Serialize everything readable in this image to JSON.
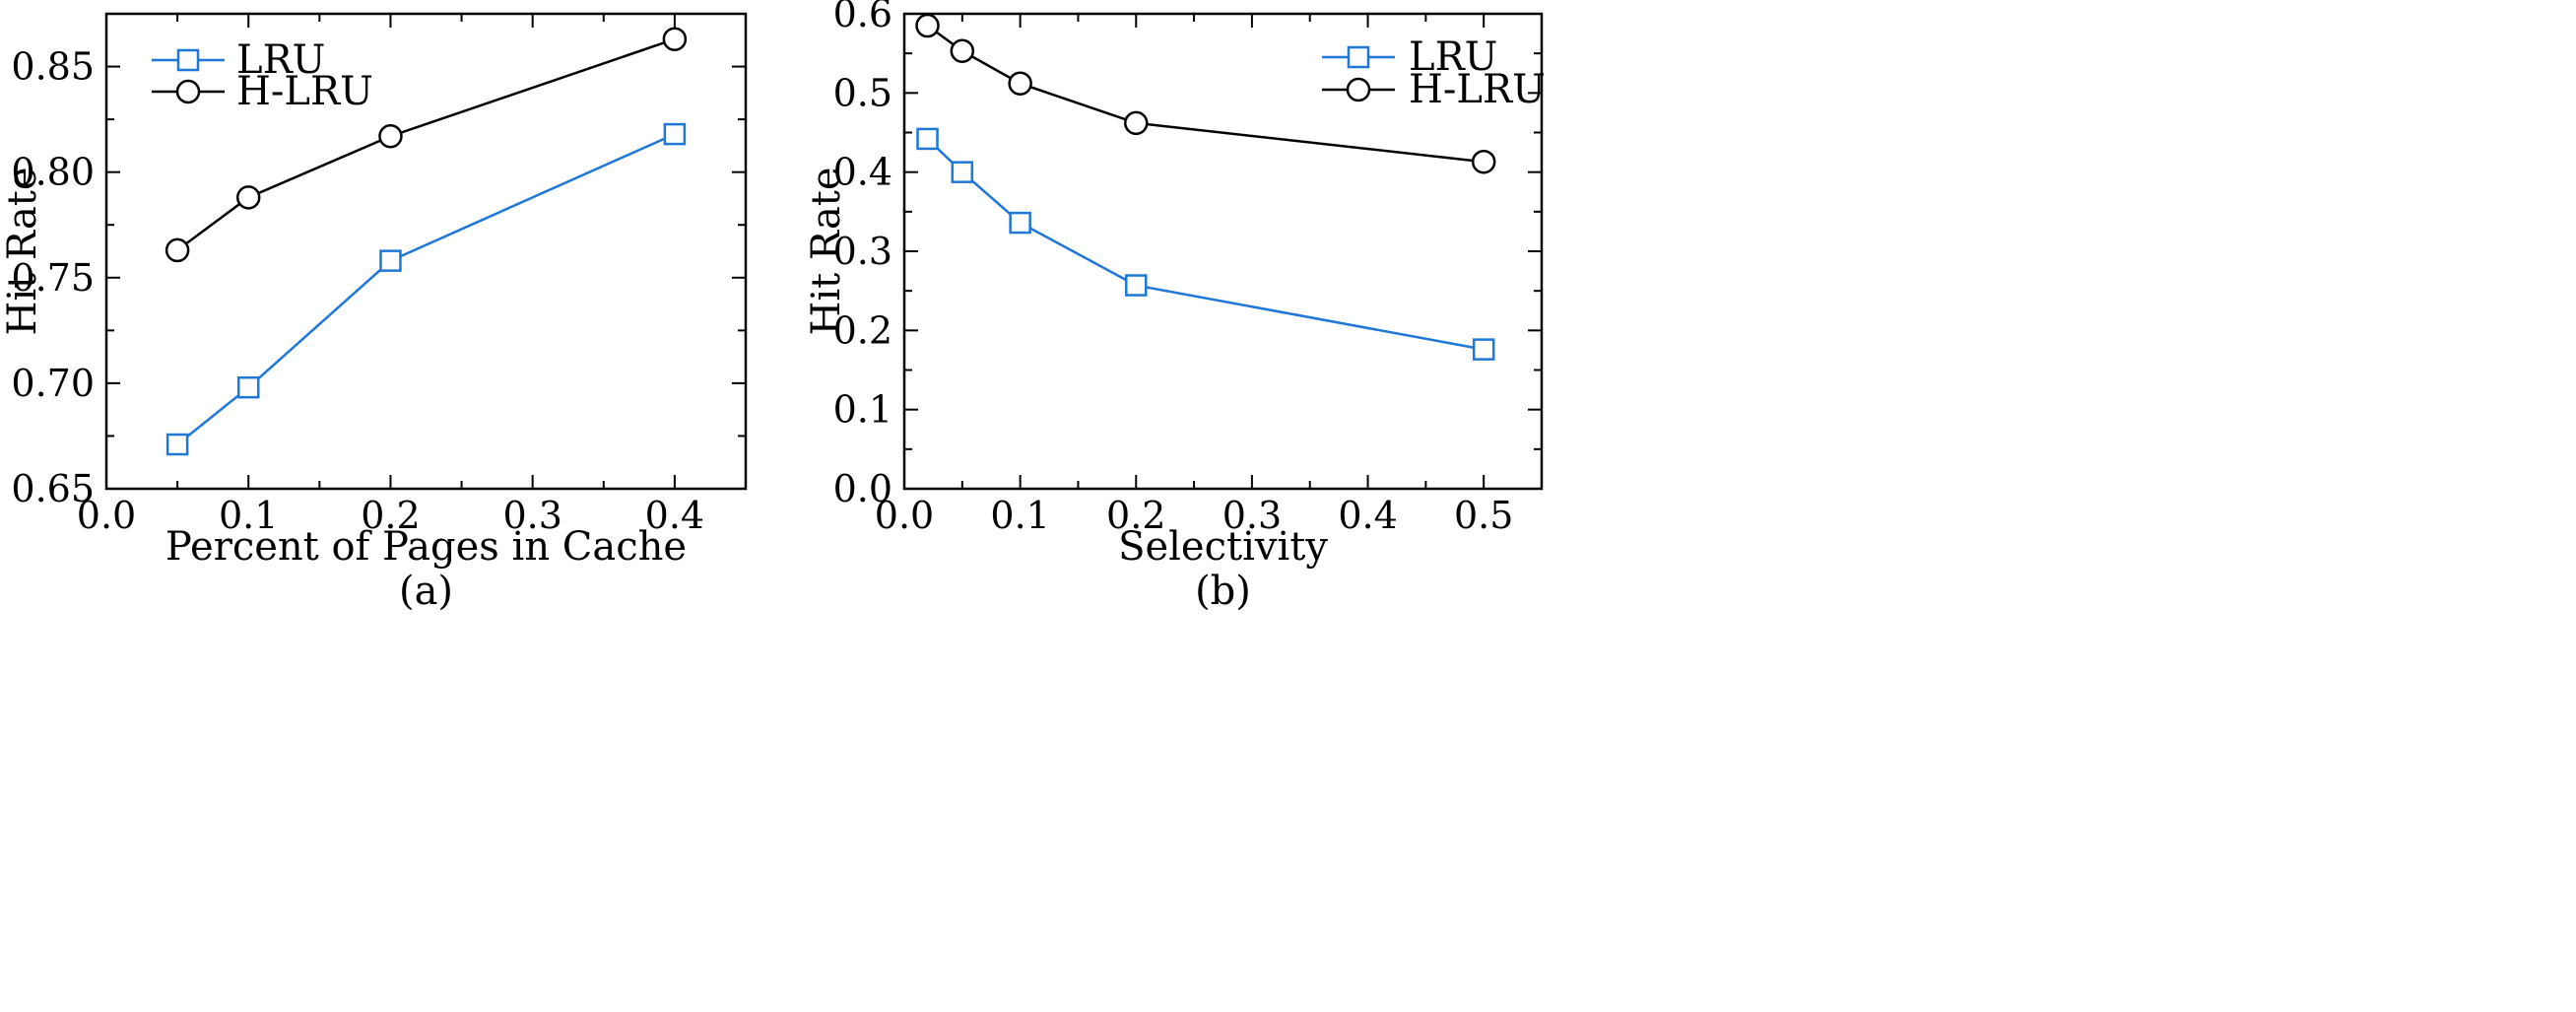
{
  "chart_data": [
    {
      "type": "line",
      "caption": "(a)",
      "xlabel": "Percent of Pages in Cache",
      "ylabel": "Hit Rate",
      "xlim": [
        0.0,
        0.45
      ],
      "ylim": [
        0.65,
        0.875
      ],
      "xticks": [
        0.0,
        0.1,
        0.2,
        0.3,
        0.4
      ],
      "xtick_labels": [
        "0.0",
        "0.1",
        "0.2",
        "0.3",
        "0.4"
      ],
      "yticks": [
        0.65,
        0.7,
        0.75,
        0.8,
        0.85
      ],
      "ytick_labels": [
        "0.65",
        "0.70",
        "0.75",
        "0.80",
        "0.85"
      ],
      "grid": false,
      "legend_position": "top-left",
      "series": [
        {
          "name": "LRU",
          "color": "#1f77d8",
          "marker": "square",
          "x": [
            0.05,
            0.1,
            0.2,
            0.4
          ],
          "y": [
            0.671,
            0.698,
            0.758,
            0.818
          ]
        },
        {
          "name": "H-LRU",
          "color": "#000000",
          "marker": "circle",
          "x": [
            0.05,
            0.1,
            0.2,
            0.4
          ],
          "y": [
            0.763,
            0.788,
            0.817,
            0.863
          ]
        }
      ]
    },
    {
      "type": "line",
      "caption": "(b)",
      "xlabel": "Selectivity",
      "ylabel": "Hit Rate",
      "xlim": [
        0.0,
        0.55
      ],
      "ylim": [
        0.0,
        0.6
      ],
      "xticks": [
        0.0,
        0.1,
        0.2,
        0.3,
        0.4,
        0.5
      ],
      "xtick_labels": [
        "0.0",
        "0.1",
        "0.2",
        "0.3",
        "0.4",
        "0.5"
      ],
      "yticks": [
        0.0,
        0.1,
        0.2,
        0.3,
        0.4,
        0.5,
        0.6
      ],
      "ytick_labels": [
        "0.0",
        "0.1",
        "0.2",
        "0.3",
        "0.4",
        "0.5",
        "0.6"
      ],
      "grid": false,
      "legend_position": "top-right",
      "series": [
        {
          "name": "LRU",
          "color": "#1f77d8",
          "marker": "square",
          "x": [
            0.02,
            0.05,
            0.1,
            0.2,
            0.5
          ],
          "y": [
            0.442,
            0.4,
            0.336,
            0.257,
            0.176
          ]
        },
        {
          "name": "H-LRU",
          "color": "#000000",
          "marker": "circle",
          "x": [
            0.02,
            0.05,
            0.1,
            0.2,
            0.5
          ],
          "y": [
            0.585,
            0.553,
            0.512,
            0.462,
            0.413
          ]
        }
      ]
    }
  ]
}
